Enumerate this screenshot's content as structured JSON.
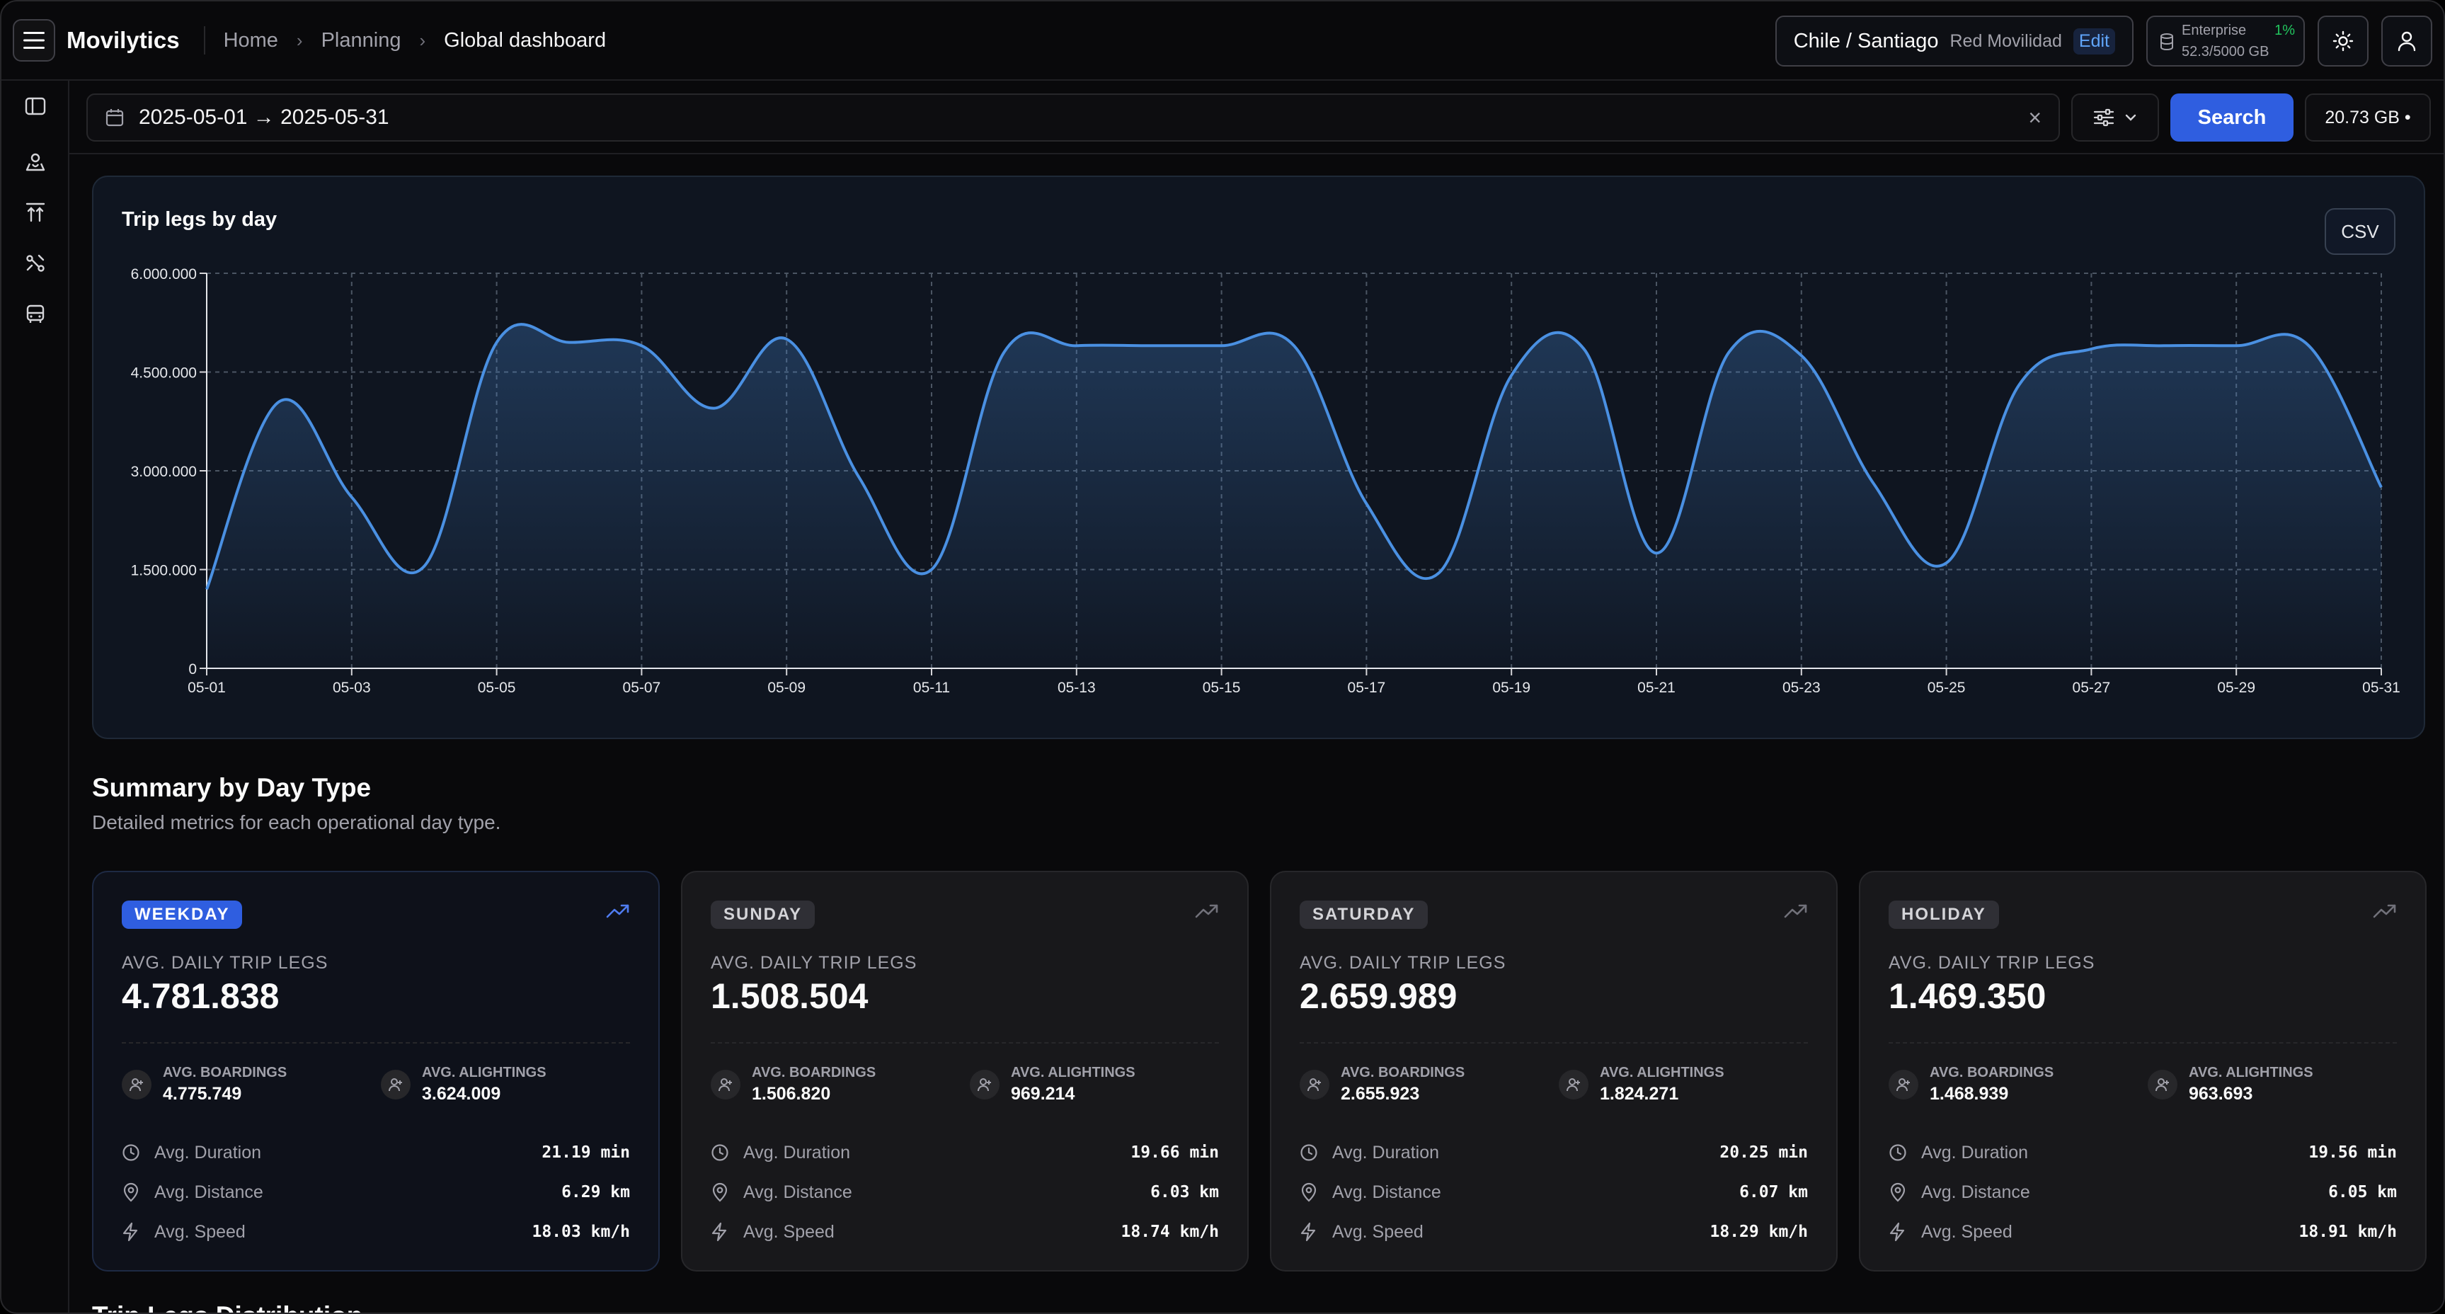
{
  "header": {
    "brand": "Movilytics",
    "breadcrumb": [
      "Home",
      "Planning",
      "Global dashboard"
    ],
    "location": "Chile / Santiago",
    "network": "Red Movilidad",
    "edit_label": "Edit",
    "plan": "Enterprise",
    "plan_usage_pct": "1%",
    "storage": "52.3/5000 GB",
    "icons": [
      "menu-icon",
      "sun-icon",
      "user-icon",
      "database-icon"
    ]
  },
  "sidebar": {
    "icons": [
      "panel-toggle-icon",
      "map-user-icon",
      "arrows-up-icon",
      "route-icon",
      "bus-icon"
    ]
  },
  "filter": {
    "date_range": "2025-05-01 → 2025-05-31",
    "clear_symbol": "×",
    "search_label": "Search",
    "size_label": "20.73 GB •"
  },
  "chart": {
    "csv_label": "CSV"
  },
  "chart_data": {
    "type": "area",
    "title": "Trip legs by day",
    "xlabel": "",
    "ylabel": "",
    "ylim": [
      0,
      6000000
    ],
    "y_ticks": [
      "0",
      "1.500.000",
      "3.000.000",
      "4.500.000",
      "6.000.000"
    ],
    "x_ticks": [
      "05-01",
      "05-03",
      "05-05",
      "05-07",
      "05-09",
      "05-11",
      "05-13",
      "05-15",
      "05-17",
      "05-19",
      "05-21",
      "05-23",
      "05-25",
      "05-27",
      "05-29",
      "05-31"
    ],
    "grid": true,
    "line_color": "#4a90e2",
    "series": [
      {
        "x": [
          "05-01",
          "05-02",
          "05-03",
          "05-04",
          "05-05",
          "05-06",
          "05-07",
          "05-08",
          "05-09",
          "05-10",
          "05-11",
          "05-12",
          "05-13",
          "05-14",
          "05-15",
          "05-16",
          "05-17",
          "05-18",
          "05-19",
          "05-20",
          "05-21",
          "05-22",
          "05-23",
          "05-24",
          "05-25",
          "05-26",
          "05-27",
          "05-28",
          "05-29",
          "05-30",
          "05-31"
        ],
        "values": [
          1200000,
          4050000,
          2600000,
          1550000,
          4950000,
          4950000,
          4900000,
          3950000,
          5000000,
          2900000,
          1500000,
          4800000,
          4900000,
          4900000,
          4900000,
          4900000,
          2500000,
          1450000,
          4450000,
          4850000,
          1750000,
          4800000,
          4750000,
          2800000,
          1600000,
          4300000,
          4850000,
          4900000,
          4900000,
          4900000,
          2750000
        ]
      }
    ]
  },
  "summary": {
    "title": "Summary by Day Type",
    "subtitle": "Detailed metrics for each operational day type.",
    "metric_label": "AVG. DAILY TRIP LEGS",
    "boardings_label": "AVG. BOARDINGS",
    "alightings_label": "AVG. ALIGHTINGS",
    "duration_label": "Avg. Duration",
    "distance_label": "Avg. Distance",
    "speed_label": "Avg. Speed",
    "accent_color": "#2f5ee0",
    "cards": [
      {
        "badge": "WEEKDAY",
        "value": "4.781.838",
        "boardings": "4.775.749",
        "alightings": "3.624.009",
        "duration": "21.19 min",
        "distance": "6.29 km",
        "speed": "18.03 km/h"
      },
      {
        "badge": "SUNDAY",
        "value": "1.508.504",
        "boardings": "1.506.820",
        "alightings": "969.214",
        "duration": "19.66 min",
        "distance": "6.03 km",
        "speed": "18.74 km/h"
      },
      {
        "badge": "SATURDAY",
        "value": "2.659.989",
        "boardings": "2.655.923",
        "alightings": "1.824.271",
        "duration": "20.25 min",
        "distance": "6.07 km",
        "speed": "18.29 km/h"
      },
      {
        "badge": "HOLIDAY",
        "value": "1.469.350",
        "boardings": "1.468.939",
        "alightings": "963.693",
        "duration": "19.56 min",
        "distance": "6.05 km",
        "speed": "18.91 km/h"
      }
    ]
  },
  "distribution": {
    "title": "Trip Legs Distribution"
  }
}
